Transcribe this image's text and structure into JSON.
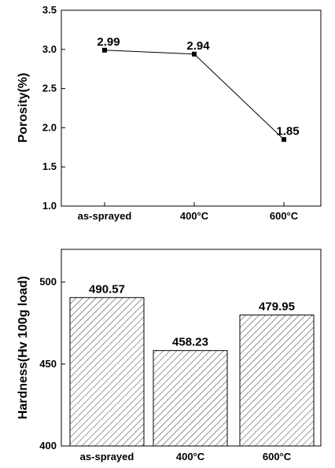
{
  "chart_data": [
    {
      "type": "line",
      "categories": [
        "as-sprayed",
        "400°C",
        "600°C"
      ],
      "values": [
        2.99,
        2.94,
        1.85
      ],
      "data_labels": [
        "2.99",
        "2.94",
        "1.85"
      ],
      "ylabel": "Porosity(%)",
      "xlabel": "",
      "ylim": [
        1.0,
        3.5
      ],
      "yticks": [
        "1.0",
        "1.5",
        "2.0",
        "2.5",
        "3.0",
        "3.5"
      ],
      "grid": false,
      "marker": "square",
      "line_color": "#000000"
    },
    {
      "type": "bar",
      "categories": [
        "as-sprayed",
        "400°C",
        "600°C"
      ],
      "values": [
        490.57,
        458.23,
        479.95
      ],
      "data_labels": [
        "490.57",
        "458.23",
        "479.95"
      ],
      "ylabel": "Hardness(Hv 100g load)",
      "xlabel": "",
      "ylim": [
        400,
        520
      ],
      "yticks": [
        "400",
        "450",
        "500"
      ],
      "grid": false,
      "bar_fill": "hatched",
      "bar_color": "#000000"
    }
  ]
}
